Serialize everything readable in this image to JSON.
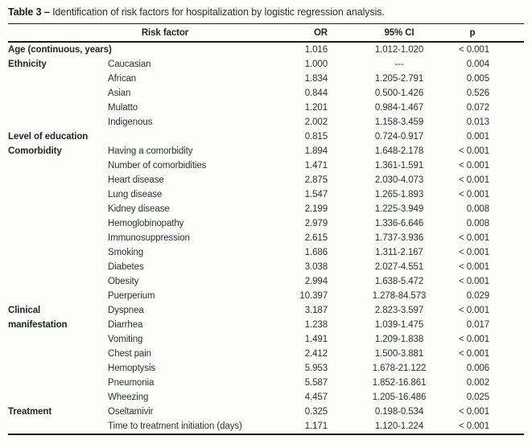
{
  "title": {
    "label": "Table 3",
    "dash": "–",
    "text": "Identification of risk factors for hospitalization by logistic regression analysis."
  },
  "table": {
    "headers": {
      "risk_factor": "Risk factor",
      "or": "OR",
      "ci": "95% CI",
      "p": "p"
    },
    "rows": [
      {
        "group": "Age (continuous, years)",
        "factor": "",
        "or": "1.016",
        "ci": "1.012-1.020",
        "p": "< 0.001"
      },
      {
        "group": "Ethnicity",
        "factor": "Caucasian",
        "or": "1.000",
        "ci": "---",
        "p": "0.004"
      },
      {
        "group": "",
        "factor": "African",
        "or": "1.834",
        "ci": "1.205-2.791",
        "p": "0.005"
      },
      {
        "group": "",
        "factor": "Asian",
        "or": "0.844",
        "ci": "0.500-1.426",
        "p": "0.526"
      },
      {
        "group": "",
        "factor": "Mulatto",
        "or": "1.201",
        "ci": "0.984-1.467",
        "p": "0.072"
      },
      {
        "group": "",
        "factor": "Indigenous",
        "or": "2.002",
        "ci": "1.158-3.459",
        "p": "0.013"
      },
      {
        "group": "Level of education",
        "factor": "",
        "or": "0.815",
        "ci": "0.724-0.917",
        "p": "0.001"
      },
      {
        "group": "Comorbidity",
        "factor": "Having a comorbidity",
        "or": "1.894",
        "ci": "1.648-2.178",
        "p": "< 0.001"
      },
      {
        "group": "",
        "factor": "Number of comorbidities",
        "or": "1.471",
        "ci": "1.361-1.591",
        "p": "< 0.001"
      },
      {
        "group": "",
        "factor": "Heart disease",
        "or": "2.875",
        "ci": "2.030-4.073",
        "p": "< 0.001"
      },
      {
        "group": "",
        "factor": "Lung disease",
        "or": "1.547",
        "ci": "1.265-1.893",
        "p": "< 0.001"
      },
      {
        "group": "",
        "factor": "Kidney disease",
        "or": "2.199",
        "ci": "1.225-3.949",
        "p": "0.008"
      },
      {
        "group": "",
        "factor": "Hemoglobinopathy",
        "or": "2.979",
        "ci": "1.336-6.646",
        "p": "0.008"
      },
      {
        "group": "",
        "factor": "Immunosuppression",
        "or": "2.615",
        "ci": "1.737-3.936",
        "p": "< 0.001"
      },
      {
        "group": "",
        "factor": "Smoking",
        "or": "1.686",
        "ci": "1.311-2.167",
        "p": "< 0.001"
      },
      {
        "group": "",
        "factor": "Diabetes",
        "or": "3.038",
        "ci": "2.027-4.551",
        "p": "< 0.001"
      },
      {
        "group": "",
        "factor": "Obesity",
        "or": "2.994",
        "ci": "1.638-5.472",
        "p": "< 0.001"
      },
      {
        "group": "",
        "factor": "Puerperium",
        "or": "10.397",
        "ci": "1.278-84.573",
        "p": "0.029"
      },
      {
        "group": "Clinical",
        "factor": "Dyspnea",
        "or": "3.187",
        "ci": "2.823-3.597",
        "p": "< 0.001"
      },
      {
        "group": "manifestation",
        "factor": "Diarrhea",
        "or": "1.238",
        "ci": "1.039-1.475",
        "p": "0.017"
      },
      {
        "group": "",
        "factor": "Vomiting",
        "or": "1.491",
        "ci": "1.209-1.838",
        "p": "< 0.001"
      },
      {
        "group": "",
        "factor": "Chest pain",
        "or": "2.412",
        "ci": "1.500-3.881",
        "p": "< 0.001"
      },
      {
        "group": "",
        "factor": "Hemoptysis",
        "or": "5.953",
        "ci": "1.678-21.122",
        "p": "0.006"
      },
      {
        "group": "",
        "factor": "Pneumonia",
        "or": "5.587",
        "ci": "1.852-16.861",
        "p": "0.002"
      },
      {
        "group": "",
        "factor": "Wheezing",
        "or": "4.457",
        "ci": "1.205-16.486",
        "p": "0.025"
      },
      {
        "group": "Treatment",
        "factor": "Oseltamivir",
        "or": "0.325",
        "ci": "0.198-0.534",
        "p": "< 0.001"
      },
      {
        "group": "",
        "factor": "Time to treatment initiation (days)",
        "or": "1.171",
        "ci": "1.120-1.224",
        "p": "< 0.001"
      }
    ]
  }
}
